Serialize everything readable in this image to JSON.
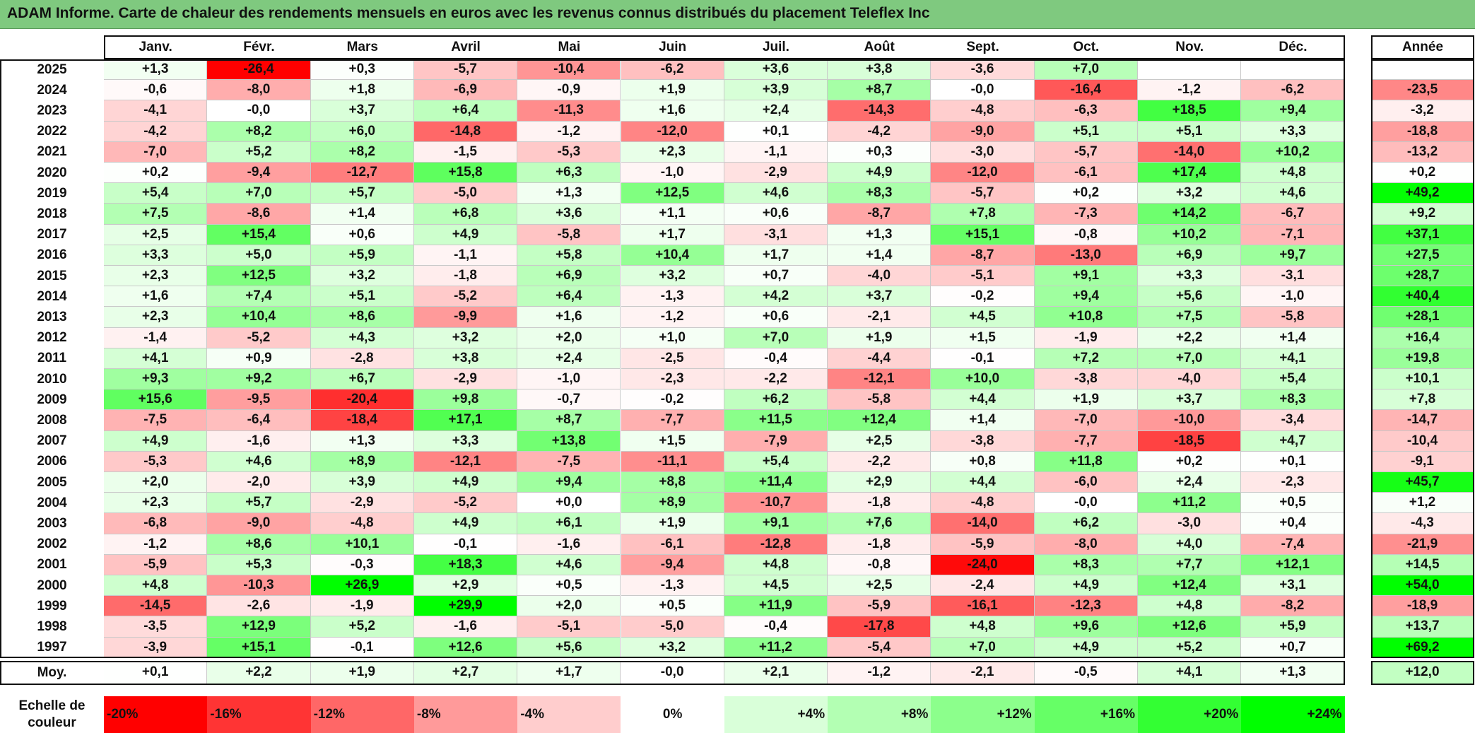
{
  "title": "ADAM Informe. Carte de chaleur des rendements mensuels en euros avec les revenus connus distribués du placement Teleflex Inc",
  "chart_data": {
    "type": "heatmap",
    "title": "ADAM Informe. Carte de chaleur des rendements mensuels en euros avec les revenus connus distribués du placement Teleflex Inc",
    "months": [
      "Janv.",
      "Févr.",
      "Mars",
      "Avril",
      "Mai",
      "Juin",
      "Juil.",
      "Août",
      "Sept.",
      "Oct.",
      "Nov.",
      "Déc."
    ],
    "annual_header": "Année",
    "rows": [
      {
        "year": "2025",
        "values": [
          "+1,3",
          "-26,4",
          "+0,3",
          "-5,7",
          "-10,4",
          "-6,2",
          "+3,6",
          "+3,8",
          "-3,6",
          "+7,0",
          "",
          ""
        ],
        "annual": ""
      },
      {
        "year": "2024",
        "values": [
          "-0,6",
          "-8,0",
          "+1,8",
          "-6,9",
          "-0,9",
          "+1,9",
          "+3,9",
          "+8,7",
          "-0,0",
          "-16,4",
          "-1,2",
          "-6,2"
        ],
        "annual": "-23,5"
      },
      {
        "year": "2023",
        "values": [
          "-4,1",
          "-0,0",
          "+3,7",
          "+6,4",
          "-11,3",
          "+1,6",
          "+2,4",
          "-14,3",
          "-4,8",
          "-6,3",
          "+18,5",
          "+9,4"
        ],
        "annual": "-3,2"
      },
      {
        "year": "2022",
        "values": [
          "-4,2",
          "+8,2",
          "+6,0",
          "-14,8",
          "-1,2",
          "-12,0",
          "+0,1",
          "-4,2",
          "-9,0",
          "+5,1",
          "+5,1",
          "+3,3"
        ],
        "annual": "-18,8"
      },
      {
        "year": "2021",
        "values": [
          "-7,0",
          "+5,2",
          "+8,2",
          "-1,5",
          "-5,3",
          "+2,3",
          "-1,1",
          "+0,3",
          "-3,0",
          "-5,7",
          "-14,0",
          "+10,2"
        ],
        "annual": "-13,2"
      },
      {
        "year": "2020",
        "values": [
          "+0,2",
          "-9,4",
          "-12,7",
          "+15,8",
          "+6,3",
          "-1,0",
          "-2,9",
          "+4,9",
          "-12,0",
          "-6,1",
          "+17,4",
          "+4,8"
        ],
        "annual": "+0,2"
      },
      {
        "year": "2019",
        "values": [
          "+5,4",
          "+7,0",
          "+5,7",
          "-5,0",
          "+1,3",
          "+12,5",
          "+4,6",
          "+8,3",
          "-5,7",
          "+0,2",
          "+3,2",
          "+4,6"
        ],
        "annual": "+49,2"
      },
      {
        "year": "2018",
        "values": [
          "+7,5",
          "-8,6",
          "+1,4",
          "+6,8",
          "+3,6",
          "+1,1",
          "+0,6",
          "-8,7",
          "+7,8",
          "-7,3",
          "+14,2",
          "-6,7"
        ],
        "annual": "+9,2"
      },
      {
        "year": "2017",
        "values": [
          "+2,5",
          "+15,4",
          "+0,6",
          "+4,9",
          "-5,8",
          "+1,7",
          "-3,1",
          "+1,3",
          "+15,1",
          "-0,8",
          "+10,2",
          "-7,1"
        ],
        "annual": "+37,1"
      },
      {
        "year": "2016",
        "values": [
          "+3,3",
          "+5,0",
          "+5,9",
          "-1,1",
          "+5,8",
          "+10,4",
          "+1,7",
          "+1,4",
          "-8,7",
          "-13,0",
          "+6,9",
          "+9,7"
        ],
        "annual": "+27,5"
      },
      {
        "year": "2015",
        "values": [
          "+2,3",
          "+12,5",
          "+3,2",
          "-1,8",
          "+6,9",
          "+3,2",
          "+0,7",
          "-4,0",
          "-5,1",
          "+9,1",
          "+3,3",
          "-3,1"
        ],
        "annual": "+28,7"
      },
      {
        "year": "2014",
        "values": [
          "+1,6",
          "+7,4",
          "+5,1",
          "-5,2",
          "+6,4",
          "-1,3",
          "+4,2",
          "+3,7",
          "-0,2",
          "+9,4",
          "+5,6",
          "-1,0"
        ],
        "annual": "+40,4"
      },
      {
        "year": "2013",
        "values": [
          "+2,3",
          "+10,4",
          "+8,6",
          "-9,9",
          "+1,6",
          "-1,2",
          "+0,6",
          "-2,1",
          "+4,5",
          "+10,8",
          "+7,5",
          "-5,8"
        ],
        "annual": "+28,1"
      },
      {
        "year": "2012",
        "values": [
          "-1,4",
          "-5,2",
          "+4,3",
          "+3,2",
          "+2,0",
          "+1,0",
          "+7,0",
          "+1,9",
          "+1,5",
          "-1,9",
          "+2,2",
          "+1,4"
        ],
        "annual": "+16,4"
      },
      {
        "year": "2011",
        "values": [
          "+4,1",
          "+0,9",
          "-2,8",
          "+3,8",
          "+2,4",
          "-2,5",
          "-0,4",
          "-4,4",
          "-0,1",
          "+7,2",
          "+7,0",
          "+4,1"
        ],
        "annual": "+19,8"
      },
      {
        "year": "2010",
        "values": [
          "+9,3",
          "+9,2",
          "+6,7",
          "-2,9",
          "-1,0",
          "-2,3",
          "-2,2",
          "-12,1",
          "+10,0",
          "-3,8",
          "-4,0",
          "+5,4"
        ],
        "annual": "+10,1"
      },
      {
        "year": "2009",
        "values": [
          "+15,6",
          "-9,5",
          "-20,4",
          "+9,8",
          "-0,7",
          "-0,2",
          "+6,2",
          "-5,8",
          "+4,4",
          "+1,9",
          "+3,7",
          "+8,3"
        ],
        "annual": "+7,8"
      },
      {
        "year": "2008",
        "values": [
          "-7,5",
          "-6,4",
          "-18,4",
          "+17,1",
          "+8,7",
          "-7,7",
          "+11,5",
          "+12,4",
          "+1,4",
          "-7,0",
          "-10,0",
          "-3,4"
        ],
        "annual": "-14,7"
      },
      {
        "year": "2007",
        "values": [
          "+4,9",
          "-1,6",
          "+1,3",
          "+3,3",
          "+13,8",
          "+1,5",
          "-7,9",
          "+2,5",
          "-3,8",
          "-7,7",
          "-18,5",
          "+4,7"
        ],
        "annual": "-10,4"
      },
      {
        "year": "2006",
        "values": [
          "-5,3",
          "+4,6",
          "+8,9",
          "-12,1",
          "-7,5",
          "-11,1",
          "+5,4",
          "-2,2",
          "+0,8",
          "+11,8",
          "+0,2",
          "+0,1"
        ],
        "annual": "-9,1"
      },
      {
        "year": "2005",
        "values": [
          "+2,0",
          "-2,0",
          "+3,9",
          "+4,9",
          "+9,4",
          "+8,8",
          "+11,4",
          "+2,9",
          "+4,4",
          "-6,0",
          "+2,4",
          "-2,3"
        ],
        "annual": "+45,7"
      },
      {
        "year": "2004",
        "values": [
          "+2,3",
          "+5,7",
          "-2,9",
          "-5,2",
          "+0,0",
          "+8,9",
          "-10,7",
          "-1,8",
          "-4,8",
          "-0,0",
          "+11,2",
          "+0,5"
        ],
        "annual": "+1,2"
      },
      {
        "year": "2003",
        "values": [
          "-6,8",
          "-9,0",
          "-4,8",
          "+4,9",
          "+6,1",
          "+1,9",
          "+9,1",
          "+7,6",
          "-14,0",
          "+6,2",
          "-3,0",
          "+0,4"
        ],
        "annual": "-4,3"
      },
      {
        "year": "2002",
        "values": [
          "-1,2",
          "+8,6",
          "+10,1",
          "-0,1",
          "-1,6",
          "-6,1",
          "-12,8",
          "-1,8",
          "-5,9",
          "-8,0",
          "+4,0",
          "-7,4"
        ],
        "annual": "-21,9"
      },
      {
        "year": "2001",
        "values": [
          "-5,9",
          "+5,3",
          "-0,3",
          "+18,3",
          "+4,6",
          "-9,4",
          "+4,8",
          "-0,8",
          "-24,0",
          "+8,3",
          "+7,7",
          "+12,1"
        ],
        "annual": "+14,5"
      },
      {
        "year": "2000",
        "values": [
          "+4,8",
          "-10,3",
          "+26,9",
          "+2,9",
          "+0,5",
          "-1,3",
          "+4,5",
          "+2,5",
          "-2,4",
          "+4,9",
          "+12,4",
          "+3,1"
        ],
        "annual": "+54,0"
      },
      {
        "year": "1999",
        "values": [
          "-14,5",
          "-2,6",
          "-1,9",
          "+29,9",
          "+2,0",
          "+0,5",
          "+11,9",
          "-5,9",
          "-16,1",
          "-12,3",
          "+4,8",
          "-8,2"
        ],
        "annual": "-18,9"
      },
      {
        "year": "1998",
        "values": [
          "-3,5",
          "+12,9",
          "+5,2",
          "-1,6",
          "-5,1",
          "-5,0",
          "-0,4",
          "-17,8",
          "+4,8",
          "+9,6",
          "+12,6",
          "+5,9"
        ],
        "annual": "+13,7"
      },
      {
        "year": "1997",
        "values": [
          "-3,9",
          "+15,1",
          "-0,1",
          "+12,6",
          "+5,6",
          "+3,2",
          "+11,2",
          "-5,4",
          "+7,0",
          "+4,9",
          "+5,2",
          "+0,7"
        ],
        "annual": "+69,2"
      }
    ],
    "average": {
      "label": "Moy.",
      "values": [
        "+0,1",
        "+2,2",
        "+1,9",
        "+2,7",
        "+1,7",
        "-0,0",
        "+2,1",
        "-1,2",
        "-2,1",
        "-0,5",
        "+4,1",
        "+1,3"
      ],
      "annual": "+12,0"
    },
    "scale": {
      "label_line1": "Echelle de",
      "label_line2": "couleur",
      "steps": [
        {
          "label": "-20%",
          "value": -20,
          "color": "#ff0000"
        },
        {
          "label": "-16%",
          "value": -16,
          "color": "#ff3434"
        },
        {
          "label": "-12%",
          "value": -12,
          "color": "#ff6767"
        },
        {
          "label": "-8%",
          "value": -8,
          "color": "#ff9a9a"
        },
        {
          "label": "-4%",
          "value": -4,
          "color": "#ffcdcd"
        },
        {
          "label": "0%",
          "value": 0,
          "color": "#ffffff"
        },
        {
          "label": "+4%",
          "value": 4,
          "color": "#d9ffd9"
        },
        {
          "label": "+8%",
          "value": 8,
          "color": "#b3ffb3"
        },
        {
          "label": "+12%",
          "value": 12,
          "color": "#8cff8c"
        },
        {
          "label": "+16%",
          "value": 16,
          "color": "#66ff66"
        },
        {
          "label": "+20%",
          "value": 20,
          "color": "#33ff33"
        },
        {
          "label": "+24%",
          "value": 24,
          "color": "#00ff00"
        }
      ]
    }
  }
}
